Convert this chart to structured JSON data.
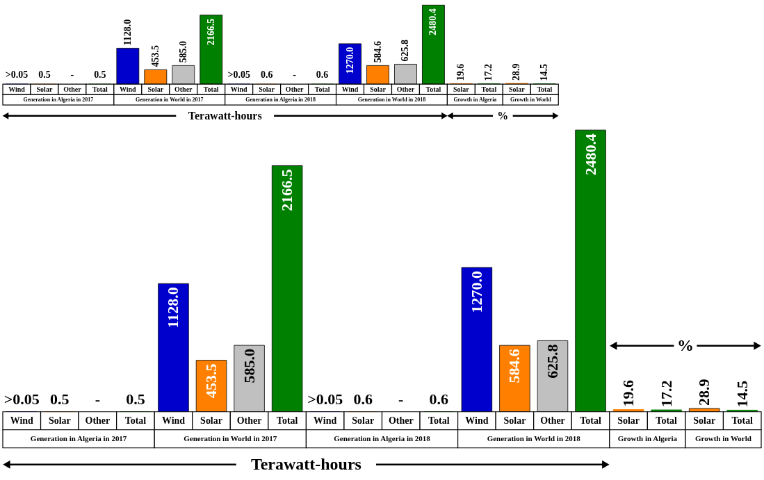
{
  "chart_data": [
    {
      "type": "bar",
      "categories": [
        "Wind",
        "Solar",
        "Other",
        "Total",
        "Wind",
        "Solar",
        "Other",
        "Total",
        "Wind",
        "Solar",
        "Other",
        "Total",
        "Wind",
        "Solar",
        "Other",
        "Total",
        "Solar",
        "Total",
        "Solar",
        "Total"
      ],
      "values": [
        0.05,
        0.5,
        null,
        0.5,
        1128.0,
        453.5,
        585.0,
        2166.5,
        0.05,
        0.6,
        null,
        0.6,
        1270.0,
        584.6,
        625.8,
        2480.4,
        19.6,
        17.2,
        28.9,
        14.5
      ],
      "value_labels": [
        ">0.05",
        "0.5",
        "-",
        "0.5",
        "1128.0",
        "453.5",
        "585.0",
        "2166.5",
        ">0.05",
        "0.6",
        "-",
        "0.6",
        "1270.0",
        "584.6",
        "625.8",
        "2480.4",
        "19.6",
        "17.2",
        "28.9",
        "14.5"
      ],
      "colors": [
        "#0000cc",
        "#ff8000",
        "#c0c0c0",
        "#008000",
        "#0000cc",
        "#ff8000",
        "#c0c0c0",
        "#008000",
        "#0000cc",
        "#ff8000",
        "#c0c0c0",
        "#008000",
        "#0000cc",
        "#ff8000",
        "#c0c0c0",
        "#008000",
        "#ff8000",
        "#008000",
        "#ff8000",
        "#008000"
      ],
      "annotations": [
        "Generation in Algeria in 2017",
        "Generation in World in 2017",
        "Generation in Algeria in 2018",
        "Generation in World in 2018",
        "Growth in Algeria",
        "Growth in World",
        "Terawatt-hours",
        "%"
      ]
    },
    {
      "type": "bar",
      "categories": [
        "Wind",
        "Solar",
        "Other",
        "Total",
        "Wind",
        "Solar",
        "Other",
        "Total",
        "Wind",
        "Solar",
        "Other",
        "Total",
        "Wind",
        "Solar",
        "Other",
        "Total",
        "Solar",
        "Total",
        "Solar",
        "Total"
      ],
      "values": [
        0.05,
        0.5,
        null,
        0.5,
        1128.0,
        453.5,
        585.0,
        2166.5,
        0.05,
        0.6,
        null,
        0.6,
        1270.0,
        584.6,
        625.8,
        2480.4,
        19.6,
        17.2,
        28.9,
        14.5
      ],
      "value_labels": [
        ">0.05",
        "0.5",
        "-",
        "0.5",
        "1128.0",
        "453.5",
        "585.0",
        "2166.5",
        ">0.05",
        "0.6",
        "-",
        "0.6",
        "1270.0",
        "584.6",
        "625.8",
        "2480.4",
        "19.6",
        "17.2",
        "28.9",
        "14.5"
      ],
      "colors": [
        "#0000cc",
        "#ff8000",
        "#c0c0c0",
        "#008000",
        "#0000cc",
        "#ff8000",
        "#c0c0c0",
        "#008000",
        "#0000cc",
        "#ff8000",
        "#c0c0c0",
        "#008000",
        "#0000cc",
        "#ff8000",
        "#c0c0c0",
        "#008000",
        "#ff8000",
        "#008000",
        "#ff8000",
        "#008000"
      ],
      "annotations": [
        "Generation in Algeria in 2017",
        "Generation in World in 2017",
        "Generation in Algeria in 2018",
        "Generation in World in 2018",
        "Growth in Algeria",
        "Growth in World",
        "Terawatt-hours",
        "%"
      ]
    }
  ]
}
